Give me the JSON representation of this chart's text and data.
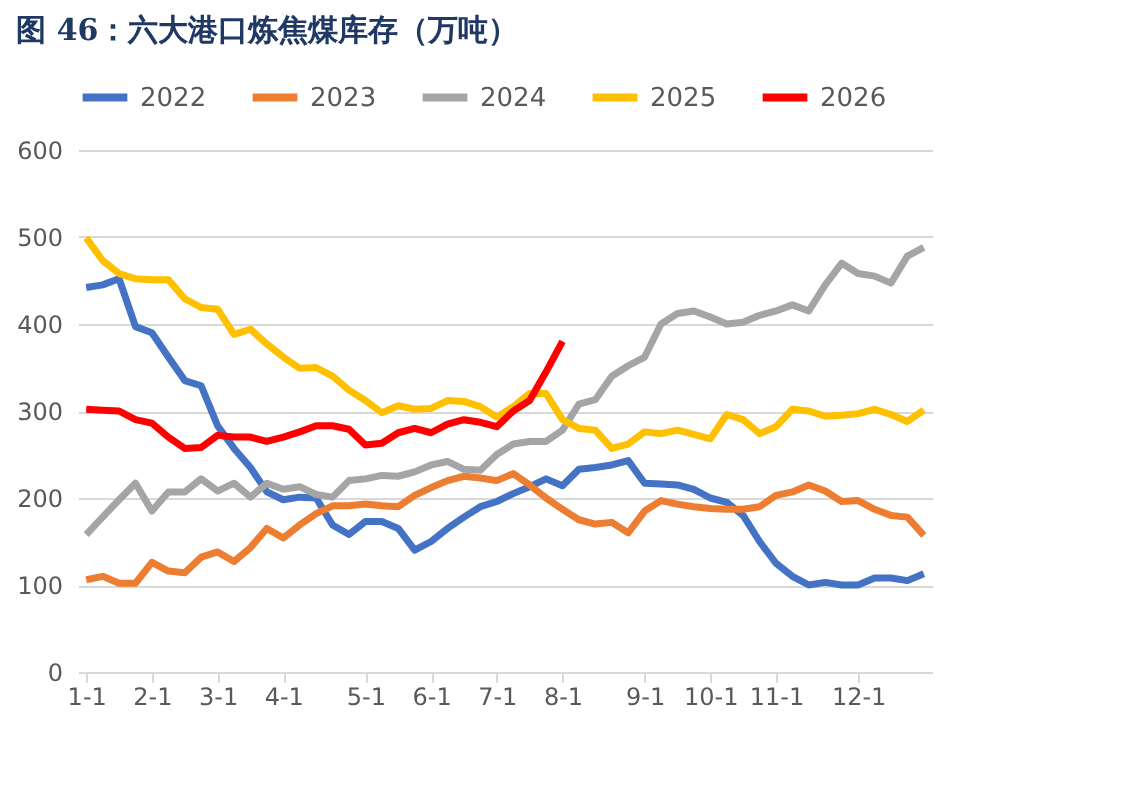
{
  "chart_data": {
    "type": "line",
    "title": "图 46：六大港口炼焦煤库存（万吨）",
    "categories": [
      "1-1",
      null,
      null,
      null,
      "2-1",
      null,
      null,
      null,
      "3-1",
      null,
      null,
      null,
      "4-1",
      null,
      null,
      null,
      null,
      "5-1",
      null,
      null,
      null,
      "6-1",
      null,
      null,
      null,
      "7-1",
      null,
      null,
      null,
      "8-1",
      null,
      null,
      null,
      null,
      "9-1",
      null,
      null,
      null,
      "10-1",
      null,
      null,
      null,
      "11-1",
      null,
      null,
      null,
      null,
      "12-1",
      null,
      null,
      null,
      null
    ],
    "series": [
      {
        "name": "2022",
        "color": "#4472c4",
        "values": [
          442,
          445,
          452,
          397,
          390,
          362,
          335,
          329,
          283,
          257,
          235,
          207,
          198,
          201,
          200,
          169,
          158,
          173,
          173,
          165,
          140,
          150,
          165,
          178,
          190,
          196,
          205,
          213,
          222,
          214,
          233,
          235,
          238,
          243,
          217,
          216,
          215,
          210,
          200,
          195,
          180,
          150,
          125,
          110,
          100,
          103,
          100,
          100,
          108,
          108,
          105,
          113
        ]
      },
      {
        "name": "2023",
        "color": "#ed7d31",
        "values": [
          106,
          110,
          102,
          102,
          126,
          116,
          114,
          132,
          138,
          127,
          143,
          165,
          154,
          169,
          182,
          191,
          191,
          193,
          191,
          190,
          203,
          212,
          220,
          225,
          223,
          220,
          228,
          215,
          200,
          187,
          175,
          170,
          172,
          160,
          185,
          197,
          193,
          190,
          188,
          187,
          187,
          190,
          203,
          207,
          215,
          208,
          196,
          197,
          187,
          180,
          178,
          157
        ]
      },
      {
        "name": "2024",
        "color": "#a5a5a5",
        "values": [
          158,
          178,
          198,
          217,
          185,
          207,
          207,
          222,
          208,
          217,
          201,
          217,
          210,
          213,
          204,
          201,
          220,
          222,
          226,
          225,
          230,
          238,
          242,
          233,
          232,
          250,
          262,
          265,
          265,
          278,
          308,
          313,
          340,
          352,
          362,
          400,
          412,
          415,
          408,
          400,
          402,
          410,
          415,
          422,
          415,
          445,
          470,
          458,
          455,
          447,
          478,
          488
        ]
      },
      {
        "name": "2025",
        "color": "#ffc000",
        "values": [
          499,
          473,
          458,
          452,
          451,
          451,
          429,
          419,
          417,
          388,
          394,
          377,
          362,
          349,
          350,
          340,
          324,
          312,
          298,
          306,
          302,
          303,
          312,
          311,
          305,
          293,
          305,
          320,
          320,
          290,
          280,
          278,
          257,
          262,
          276,
          274,
          278,
          273,
          268,
          296,
          290,
          274,
          282,
          302,
          300,
          294,
          295,
          297,
          302,
          296,
          288,
          301
        ]
      },
      {
        "name": "2026",
        "color": "#ff0000",
        "values": [
          302,
          301,
          300,
          290,
          286,
          270,
          257,
          258,
          272,
          270,
          270,
          265,
          270,
          276,
          283,
          283,
          279,
          261,
          263,
          275,
          280,
          275,
          285,
          290,
          287,
          282,
          300,
          312,
          345,
          380,
          null,
          null,
          null,
          null,
          null,
          null,
          null,
          null,
          null,
          null,
          null,
          null,
          null,
          null,
          null,
          null,
          null,
          null,
          null,
          null,
          null,
          null
        ]
      }
    ],
    "ylim": [
      0,
      600
    ],
    "yticks": [
      0,
      100,
      200,
      300,
      400,
      500,
      600
    ],
    "grid": "y",
    "legend": "top",
    "marker": "none",
    "line_style": "solid"
  }
}
